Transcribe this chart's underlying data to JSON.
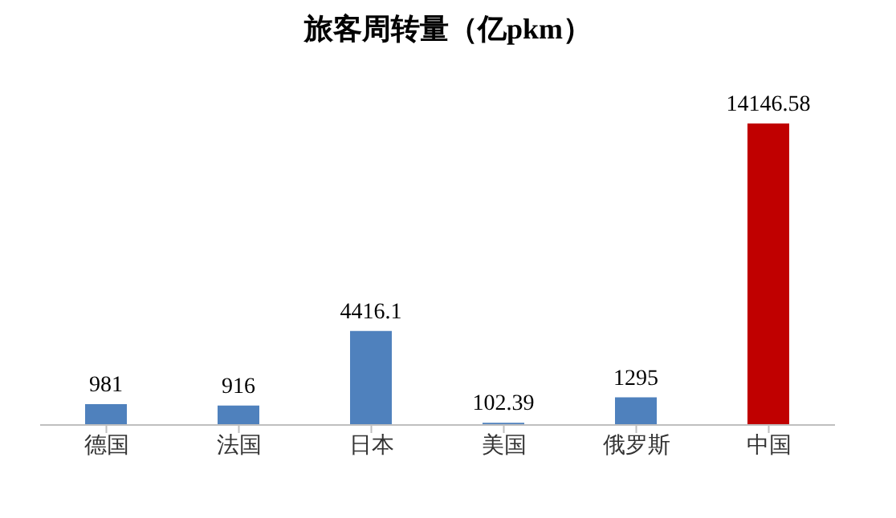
{
  "chart_data": {
    "type": "bar",
    "title": "旅客周转量（亿pkm）",
    "categories": [
      "德国",
      "法国",
      "日本",
      "美国",
      "俄罗斯",
      "中国"
    ],
    "values": [
      981,
      916,
      4416.1,
      102.39,
      1295,
      14146.58
    ],
    "colors": [
      "#4f81bd",
      "#4f81bd",
      "#4f81bd",
      "#4f81bd",
      "#4f81bd",
      "#c00000"
    ],
    "data_labels": true,
    "grid": false,
    "legend": false
  }
}
